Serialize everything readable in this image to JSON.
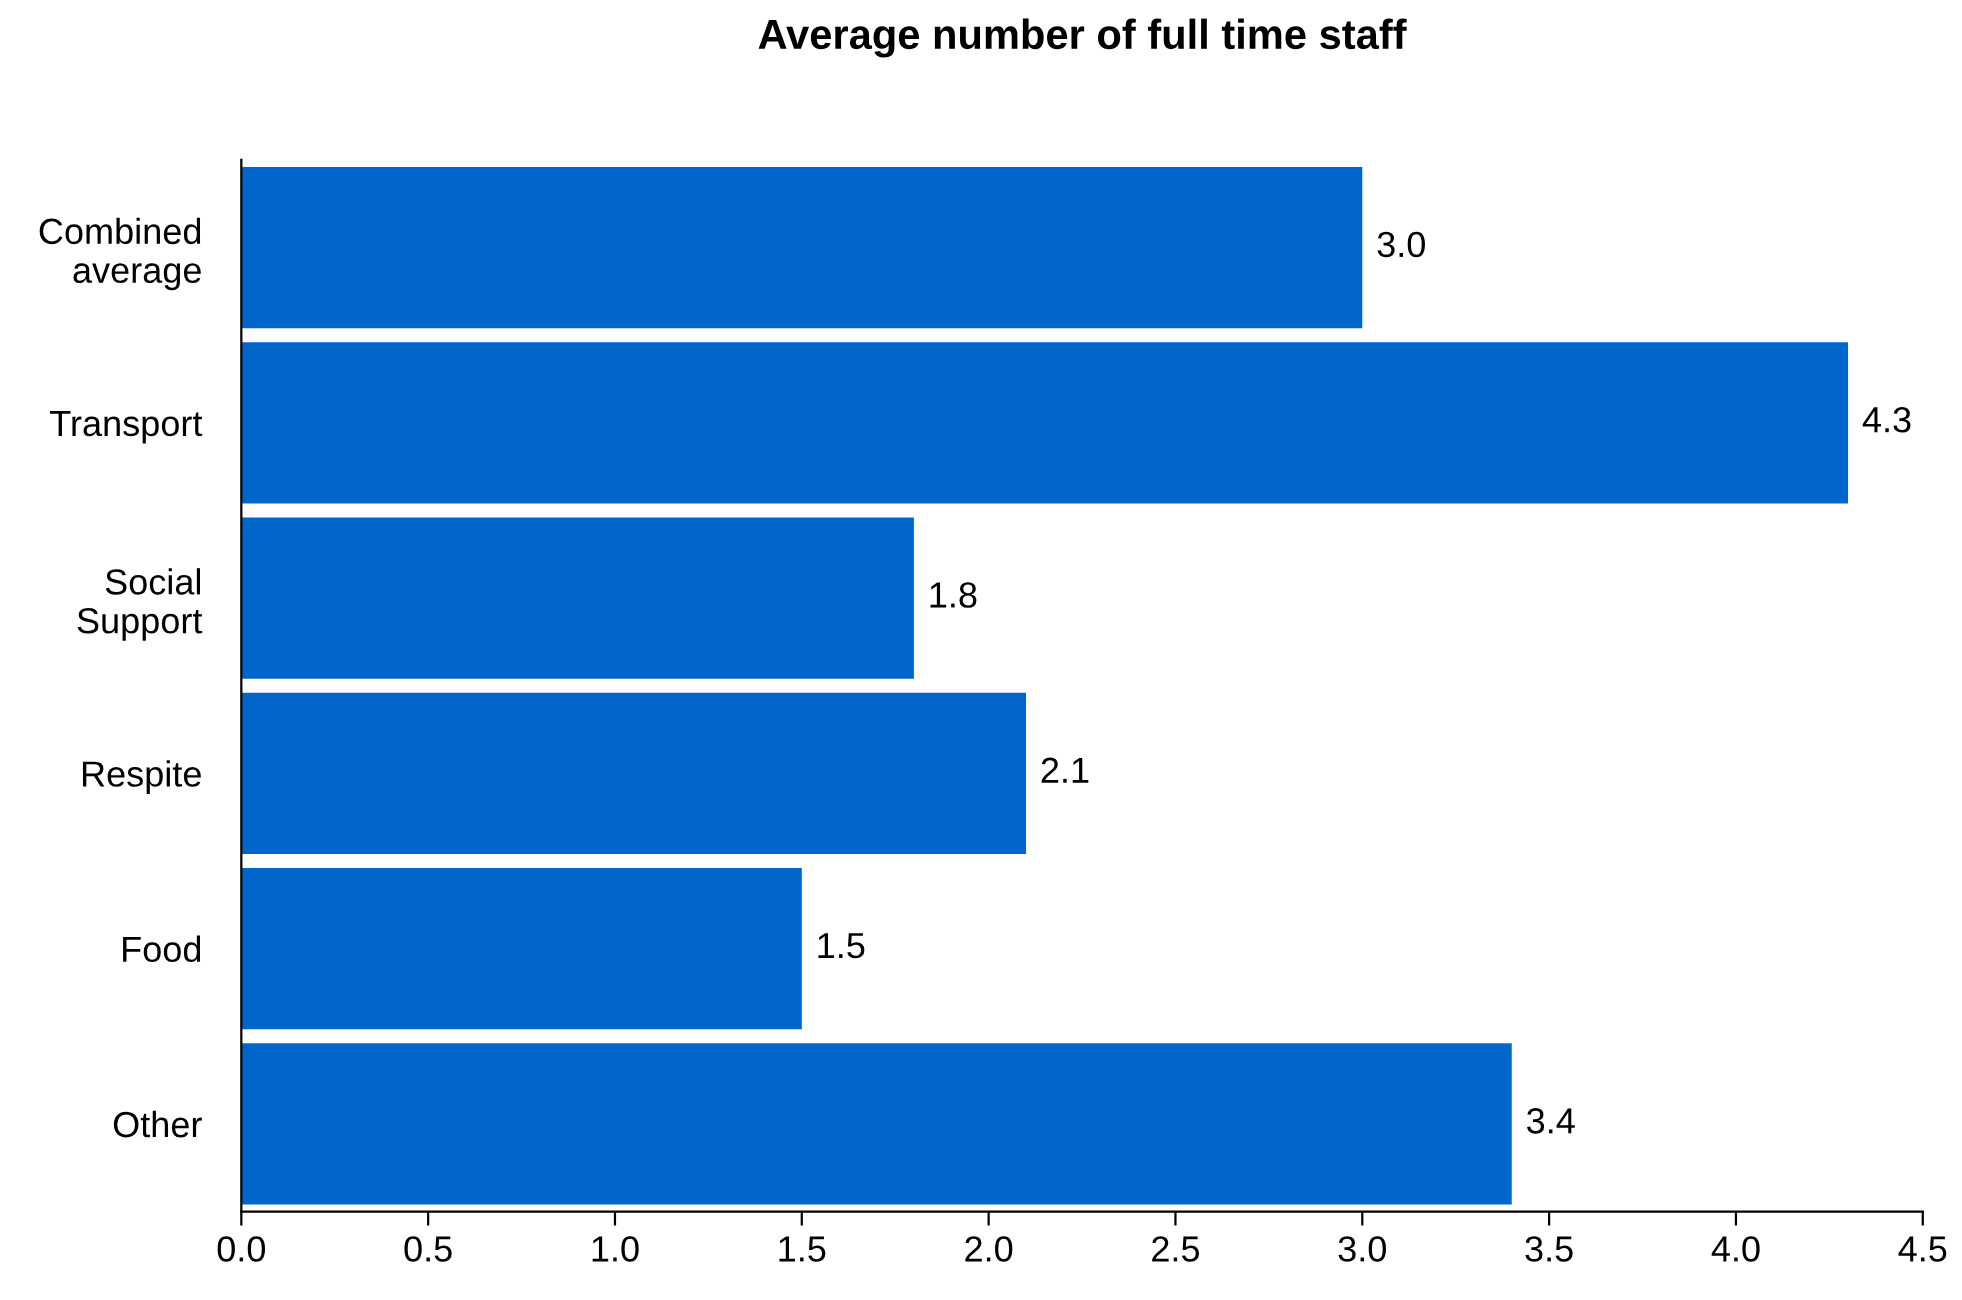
{
  "chart_data": {
    "type": "bar",
    "orientation": "horizontal",
    "title": "Average number of full time staff",
    "categories": [
      "Combined\naverage",
      "Transport",
      "Social\nSupport",
      "Respite",
      "Food",
      "Other"
    ],
    "values": [
      3.0,
      4.3,
      1.8,
      2.1,
      1.5,
      3.4
    ],
    "color": "#0066cc",
    "xlim": [
      0,
      4.5
    ],
    "xticks": [
      "0.0",
      "0.5",
      "1.0",
      "1.5",
      "2.0",
      "2.5",
      "3.0",
      "3.5",
      "4.0",
      "4.5"
    ],
    "value_labels": [
      "3.0",
      "4.3",
      "1.8",
      "2.1",
      "1.5",
      "3.4"
    ],
    "grid": false,
    "legend": false
  }
}
